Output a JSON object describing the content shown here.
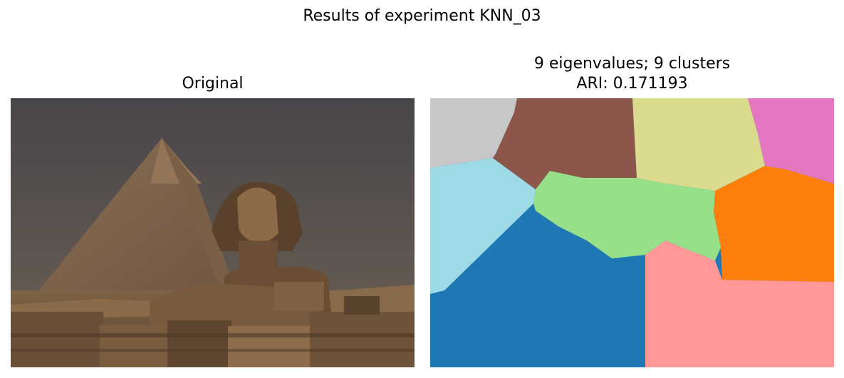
{
  "figure": {
    "suptitle": "Results of experiment KNN_03"
  },
  "left_panel": {
    "title": "Original",
    "image": "photo of the Great Sphinx of Giza in front of the Pyramid of Khafre"
  },
  "right_panel": {
    "title_line1": "9 eigenvalues; 9 clusters",
    "title_line2": "ARI: 0.171193",
    "image": "spectral clustering segmentation map with 9 colored clusters",
    "cluster_colors": [
      "#c7c7c7",
      "#8c564b",
      "#dbdb8d",
      "#e377c2",
      "#9edae5",
      "#98df8a",
      "#ff7f0e",
      "#1f77b4",
      "#ff9896"
    ]
  }
}
